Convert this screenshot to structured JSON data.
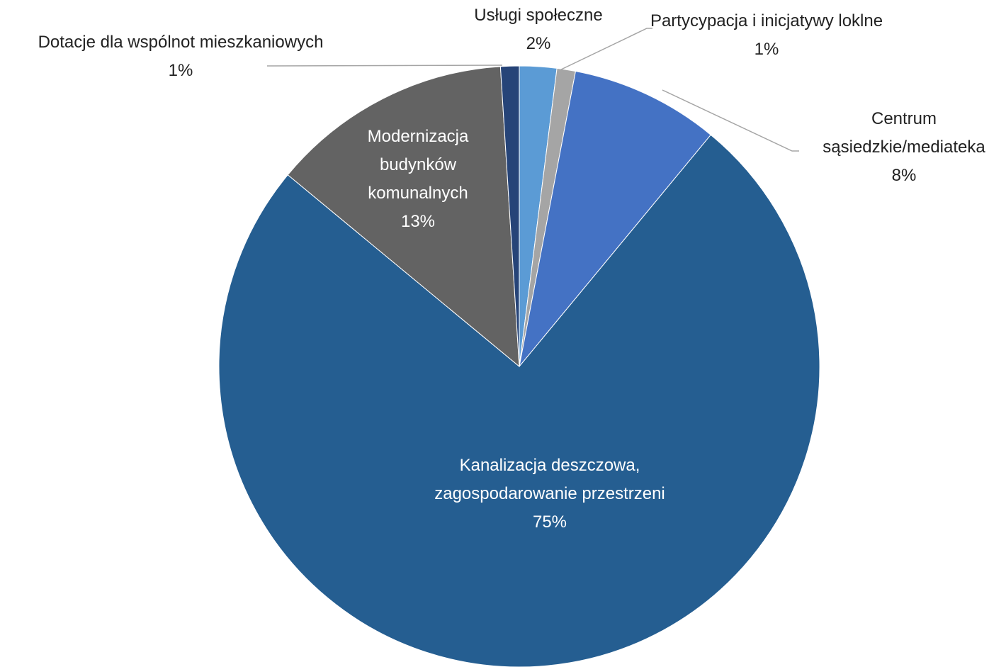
{
  "chart_data": {
    "type": "pie",
    "categories": [
      "Usługi społeczne",
      "Partycypacja i inicjatywy loklne",
      "Centrum sąsiedzkie/mediateka",
      "Kanalizacja deszczowa, zagospodarowanie przestrzeni",
      "Modernizacja budynków komunalnych",
      "Dotacje dla wspólnot mieszkaniowych"
    ],
    "values": [
      2,
      1,
      8,
      75,
      13,
      1
    ],
    "value_labels": [
      "2%",
      "1%",
      "8%",
      "75%",
      "13%",
      "1%"
    ],
    "colors": [
      "#5b9bd5",
      "#a5a5a5",
      "#4472c4",
      "#255e91",
      "#636363",
      "#264478"
    ]
  }
}
